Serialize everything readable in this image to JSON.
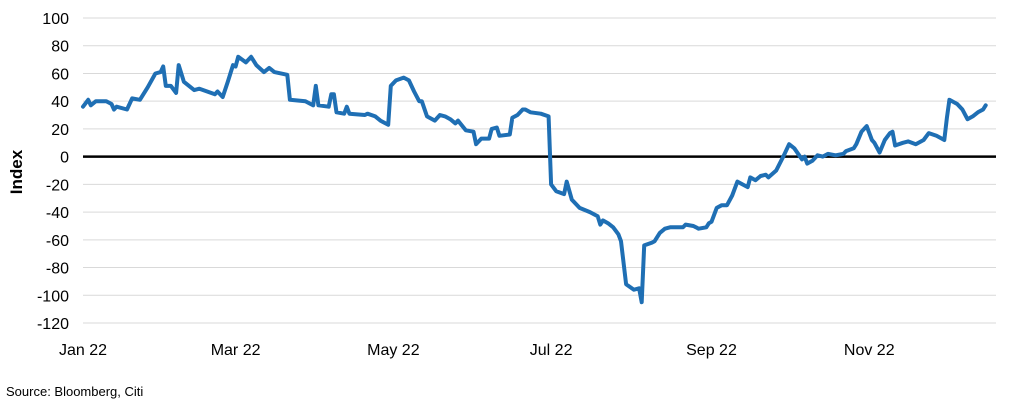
{
  "chart_data": {
    "type": "line",
    "ylabel": "Index",
    "source": "Source: Bloomberg, Citi",
    "ylim": [
      -120,
      100
    ],
    "y_ticks": [
      100,
      80,
      60,
      40,
      20,
      0,
      -20,
      -40,
      -60,
      -80,
      -100,
      -120
    ],
    "x_range": [
      "2022-01-01",
      "2022-12-20"
    ],
    "x_ticks": [
      {
        "date": "2022-01-01",
        "label": "Jan 22"
      },
      {
        "date": "2022-03-01",
        "label": "Mar 22"
      },
      {
        "date": "2022-05-01",
        "label": "May 22"
      },
      {
        "date": "2022-07-01",
        "label": "Jul 22"
      },
      {
        "date": "2022-09-01",
        "label": "Sep 22"
      },
      {
        "date": "2022-11-01",
        "label": "Nov 22"
      }
    ],
    "grid": "horizontal",
    "reference_line": 0,
    "colors": {
      "series": "#1f6fb4",
      "zero_line": "#000000",
      "grid": "#d9d9d9"
    },
    "series": [
      {
        "name": "",
        "points": [
          [
            "2022-01-01",
            36
          ],
          [
            "2022-01-03",
            41
          ],
          [
            "2022-01-04",
            37
          ],
          [
            "2022-01-06",
            40
          ],
          [
            "2022-01-10",
            40
          ],
          [
            "2022-01-12",
            38
          ],
          [
            "2022-01-13",
            34
          ],
          [
            "2022-01-14",
            36
          ],
          [
            "2022-01-18",
            34
          ],
          [
            "2022-01-20",
            42
          ],
          [
            "2022-01-23",
            41
          ],
          [
            "2022-01-26",
            50
          ],
          [
            "2022-01-29",
            60
          ],
          [
            "2022-01-31",
            61
          ],
          [
            "2022-02-01",
            65
          ],
          [
            "2022-02-02",
            51
          ],
          [
            "2022-02-04",
            51
          ],
          [
            "2022-02-06",
            46
          ],
          [
            "2022-02-07",
            66
          ],
          [
            "2022-02-09",
            54
          ],
          [
            "2022-02-13",
            48
          ],
          [
            "2022-02-15",
            49
          ],
          [
            "2022-02-21",
            45
          ],
          [
            "2022-02-22",
            47
          ],
          [
            "2022-02-24",
            43
          ],
          [
            "2022-02-26",
            54
          ],
          [
            "2022-02-28",
            66
          ],
          [
            "2022-03-01",
            65
          ],
          [
            "2022-03-02",
            72
          ],
          [
            "2022-03-05",
            68
          ],
          [
            "2022-03-07",
            72
          ],
          [
            "2022-03-09",
            66
          ],
          [
            "2022-03-12",
            61
          ],
          [
            "2022-03-14",
            64
          ],
          [
            "2022-03-16",
            61
          ],
          [
            "2022-03-21",
            59
          ],
          [
            "2022-03-22",
            41
          ],
          [
            "2022-03-28",
            40
          ],
          [
            "2022-03-30",
            38
          ],
          [
            "2022-03-31",
            37
          ],
          [
            "2022-04-01",
            51
          ],
          [
            "2022-04-02",
            37
          ],
          [
            "2022-04-06",
            36
          ],
          [
            "2022-04-07",
            45
          ],
          [
            "2022-04-08",
            45
          ],
          [
            "2022-04-09",
            32
          ],
          [
            "2022-04-12",
            31
          ],
          [
            "2022-04-13",
            36
          ],
          [
            "2022-04-14",
            31
          ],
          [
            "2022-04-20",
            30
          ],
          [
            "2022-04-21",
            31
          ],
          [
            "2022-04-24",
            29
          ],
          [
            "2022-04-26",
            26
          ],
          [
            "2022-04-29",
            23
          ],
          [
            "2022-04-30",
            51
          ],
          [
            "2022-05-02",
            55
          ],
          [
            "2022-05-05",
            57
          ],
          [
            "2022-05-07",
            55
          ],
          [
            "2022-05-09",
            47
          ],
          [
            "2022-05-11",
            40
          ],
          [
            "2022-05-12",
            40
          ],
          [
            "2022-05-14",
            29
          ],
          [
            "2022-05-17",
            26
          ],
          [
            "2022-05-19",
            30
          ],
          [
            "2022-05-21",
            29
          ],
          [
            "2022-05-23",
            27
          ],
          [
            "2022-05-25",
            24
          ],
          [
            "2022-05-26",
            26
          ],
          [
            "2022-05-29",
            19
          ],
          [
            "2022-06-01",
            18
          ],
          [
            "2022-06-02",
            9
          ],
          [
            "2022-06-04",
            13
          ],
          [
            "2022-06-07",
            13
          ],
          [
            "2022-06-08",
            20
          ],
          [
            "2022-06-10",
            21
          ],
          [
            "2022-06-11",
            15
          ],
          [
            "2022-06-15",
            16
          ],
          [
            "2022-06-16",
            28
          ],
          [
            "2022-06-18",
            30
          ],
          [
            "2022-06-20",
            34
          ],
          [
            "2022-06-21",
            34
          ],
          [
            "2022-06-23",
            32
          ],
          [
            "2022-06-27",
            31
          ],
          [
            "2022-06-30",
            29
          ],
          [
            "2022-07-01",
            -20
          ],
          [
            "2022-07-03",
            -25
          ],
          [
            "2022-07-06",
            -27
          ],
          [
            "2022-07-07",
            -18
          ],
          [
            "2022-07-09",
            -31
          ],
          [
            "2022-07-12",
            -37
          ],
          [
            "2022-07-16",
            -40
          ],
          [
            "2022-07-19",
            -43
          ],
          [
            "2022-07-20",
            -49
          ],
          [
            "2022-07-21",
            -46
          ],
          [
            "2022-07-23",
            -48
          ],
          [
            "2022-07-25",
            -51
          ],
          [
            "2022-07-27",
            -56
          ],
          [
            "2022-07-28",
            -61
          ],
          [
            "2022-07-30",
            -92
          ],
          [
            "2022-08-02",
            -96
          ],
          [
            "2022-08-04",
            -95
          ],
          [
            "2022-08-05",
            -105
          ],
          [
            "2022-08-06",
            -64
          ],
          [
            "2022-08-09",
            -62
          ],
          [
            "2022-08-10",
            -61
          ],
          [
            "2022-08-12",
            -55
          ],
          [
            "2022-08-14",
            -52
          ],
          [
            "2022-08-16",
            -51
          ],
          [
            "2022-08-21",
            -51
          ],
          [
            "2022-08-22",
            -49
          ],
          [
            "2022-08-25",
            -50
          ],
          [
            "2022-08-26",
            -51
          ],
          [
            "2022-08-27",
            -52
          ],
          [
            "2022-08-30",
            -51
          ],
          [
            "2022-08-31",
            -48
          ],
          [
            "2022-09-01",
            -47
          ],
          [
            "2022-09-03",
            -37
          ],
          [
            "2022-09-05",
            -35
          ],
          [
            "2022-09-07",
            -35
          ],
          [
            "2022-09-09",
            -28
          ],
          [
            "2022-09-11",
            -18
          ],
          [
            "2022-09-13",
            -20
          ],
          [
            "2022-09-15",
            -22
          ],
          [
            "2022-09-16",
            -15
          ],
          [
            "2022-09-18",
            -17
          ],
          [
            "2022-09-20",
            -14
          ],
          [
            "2022-09-22",
            -13
          ],
          [
            "2022-09-23",
            -15
          ],
          [
            "2022-09-26",
            -10
          ],
          [
            "2022-09-29",
            1
          ],
          [
            "2022-10-01",
            9
          ],
          [
            "2022-10-03",
            6
          ],
          [
            "2022-10-06",
            -2
          ],
          [
            "2022-10-07",
            0
          ],
          [
            "2022-10-08",
            -5
          ],
          [
            "2022-10-10",
            -3
          ],
          [
            "2022-10-12",
            1
          ],
          [
            "2022-10-14",
            0
          ],
          [
            "2022-10-16",
            2
          ],
          [
            "2022-10-19",
            1
          ],
          [
            "2022-10-22",
            2
          ],
          [
            "2022-10-23",
            4
          ],
          [
            "2022-10-26",
            6
          ],
          [
            "2022-10-27",
            9
          ],
          [
            "2022-10-29",
            18
          ],
          [
            "2022-10-31",
            22
          ],
          [
            "2022-11-02",
            12
          ],
          [
            "2022-11-03",
            10
          ],
          [
            "2022-11-05",
            3
          ],
          [
            "2022-11-07",
            12
          ],
          [
            "2022-11-09",
            17
          ],
          [
            "2022-11-10",
            18
          ],
          [
            "2022-11-11",
            8
          ],
          [
            "2022-11-14",
            10
          ],
          [
            "2022-11-16",
            11
          ],
          [
            "2022-11-19",
            9
          ],
          [
            "2022-11-22",
            12
          ],
          [
            "2022-11-24",
            17
          ],
          [
            "2022-11-27",
            15
          ],
          [
            "2022-11-30",
            12
          ],
          [
            "2022-12-01",
            28
          ],
          [
            "2022-12-02",
            41
          ],
          [
            "2022-12-05",
            38
          ],
          [
            "2022-12-07",
            34
          ],
          [
            "2022-12-09",
            27
          ],
          [
            "2022-12-11",
            29
          ],
          [
            "2022-12-13",
            32
          ],
          [
            "2022-12-15",
            34
          ],
          [
            "2022-12-16",
            37
          ]
        ]
      }
    ]
  }
}
